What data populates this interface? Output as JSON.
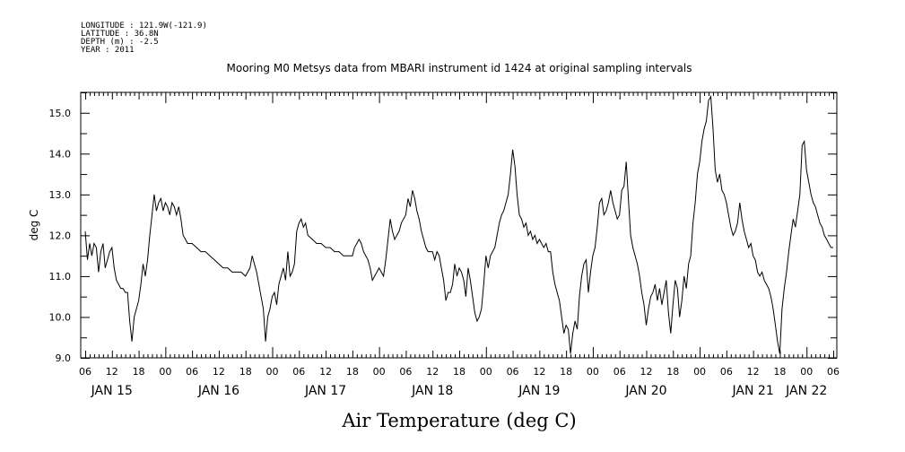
{
  "metadata": {
    "longitude": "LONGITUDE : 121.9W(-121.9)",
    "latitude": "LATITUDE : 36.8N",
    "depth": "DEPTH (m) : -2.5",
    "year": "YEAR : 2011"
  },
  "chart_data": {
    "type": "line",
    "title": "Mooring M0 Metsys data from MBARI instrument id 1424 at original sampling intervals",
    "xlabel": "Air Temperature (deg C)",
    "ylabel": "deg C",
    "ylim": [
      9.0,
      15.5
    ],
    "yticks": [
      "9.0",
      "10.0",
      "11.0",
      "12.0",
      "13.0",
      "14.0",
      "15.0"
    ],
    "xlim_hours": [
      0,
      168
    ],
    "x_hour_ticks": [
      "06",
      "12",
      "18",
      "00",
      "06",
      "12",
      "18",
      "00",
      "06",
      "12",
      "18",
      "00",
      "06",
      "12",
      "18",
      "00",
      "06",
      "12",
      "18",
      "00",
      "06",
      "12",
      "18",
      "00",
      "06",
      "12",
      "18",
      "00",
      "06"
    ],
    "x_date_labels": [
      "JAN 15",
      "JAN 16",
      "JAN 17",
      "JAN 18",
      "JAN 19",
      "JAN 20",
      "JAN 21",
      "JAN 22"
    ],
    "grid": false,
    "series": [
      {
        "color": "#000000",
        "points": [
          [
            0,
            12.1
          ],
          [
            0.5,
            11.4
          ],
          [
            1,
            11.8
          ],
          [
            1.5,
            11.5
          ],
          [
            2,
            11.8
          ],
          [
            2.5,
            11.7
          ],
          [
            3,
            11.1
          ],
          [
            3.5,
            11.6
          ],
          [
            4,
            11.8
          ],
          [
            4.5,
            11.2
          ],
          [
            5,
            11.4
          ],
          [
            5.5,
            11.6
          ],
          [
            6,
            11.7
          ],
          [
            6.5,
            11.2
          ],
          [
            7,
            10.9
          ],
          [
            7.5,
            10.8
          ],
          [
            8,
            10.7
          ],
          [
            8.5,
            10.7
          ],
          [
            9,
            10.6
          ],
          [
            9.5,
            10.6
          ],
          [
            10,
            9.9
          ],
          [
            10.5,
            9.4
          ],
          [
            11,
            10.0
          ],
          [
            11.5,
            10.2
          ],
          [
            12,
            10.4
          ],
          [
            12.5,
            10.8
          ],
          [
            13,
            11.3
          ],
          [
            13.5,
            11.0
          ],
          [
            14,
            11.4
          ],
          [
            14.5,
            12.0
          ],
          [
            15,
            12.5
          ],
          [
            15.5,
            13.0
          ],
          [
            16,
            12.6
          ],
          [
            16.5,
            12.8
          ],
          [
            17,
            12.9
          ],
          [
            17.5,
            12.6
          ],
          [
            18,
            12.8
          ],
          [
            18.5,
            12.7
          ],
          [
            19,
            12.5
          ],
          [
            19.5,
            12.8
          ],
          [
            20,
            12.7
          ],
          [
            20.5,
            12.5
          ],
          [
            21,
            12.7
          ],
          [
            21.5,
            12.4
          ],
          [
            22,
            12.0
          ],
          [
            22.5,
            11.9
          ],
          [
            23,
            11.8
          ],
          [
            24,
            11.8
          ],
          [
            25,
            11.7
          ],
          [
            26,
            11.6
          ],
          [
            27,
            11.6
          ],
          [
            28,
            11.5
          ],
          [
            29,
            11.4
          ],
          [
            30,
            11.3
          ],
          [
            31,
            11.2
          ],
          [
            32,
            11.2
          ],
          [
            33,
            11.1
          ],
          [
            34,
            11.1
          ],
          [
            35,
            11.1
          ],
          [
            36,
            11.0
          ],
          [
            37,
            11.2
          ],
          [
            37.5,
            11.5
          ],
          [
            38,
            11.3
          ],
          [
            38.5,
            11.1
          ],
          [
            39,
            10.8
          ],
          [
            39.5,
            10.5
          ],
          [
            40,
            10.2
          ],
          [
            40.5,
            9.4
          ],
          [
            41,
            10.0
          ],
          [
            41.5,
            10.2
          ],
          [
            42,
            10.5
          ],
          [
            42.5,
            10.6
          ],
          [
            43,
            10.3
          ],
          [
            43.5,
            10.8
          ],
          [
            44,
            11.0
          ],
          [
            44.5,
            11.2
          ],
          [
            45,
            10.9
          ],
          [
            45.5,
            11.6
          ],
          [
            46,
            11.0
          ],
          [
            46.5,
            11.1
          ],
          [
            47,
            11.3
          ],
          [
            47.5,
            12.1
          ],
          [
            48,
            12.3
          ],
          [
            48.5,
            12.4
          ],
          [
            49,
            12.2
          ],
          [
            49.5,
            12.3
          ],
          [
            50,
            12.0
          ],
          [
            51,
            11.9
          ],
          [
            52,
            11.8
          ],
          [
            53,
            11.8
          ],
          [
            54,
            11.7
          ],
          [
            55,
            11.7
          ],
          [
            56,
            11.6
          ],
          [
            57,
            11.6
          ],
          [
            58,
            11.5
          ],
          [
            59,
            11.5
          ],
          [
            60,
            11.5
          ],
          [
            60.5,
            11.7
          ],
          [
            61,
            11.8
          ],
          [
            61.5,
            11.9
          ],
          [
            62,
            11.8
          ],
          [
            62.5,
            11.6
          ],
          [
            63,
            11.5
          ],
          [
            63.5,
            11.4
          ],
          [
            64,
            11.2
          ],
          [
            64.5,
            10.9
          ],
          [
            65,
            11.0
          ],
          [
            65.5,
            11.1
          ],
          [
            66,
            11.2
          ],
          [
            66.5,
            11.1
          ],
          [
            67,
            11.0
          ],
          [
            67.5,
            11.4
          ],
          [
            68,
            11.9
          ],
          [
            68.5,
            12.4
          ],
          [
            69,
            12.1
          ],
          [
            69.5,
            11.9
          ],
          [
            70,
            12.0
          ],
          [
            70.5,
            12.1
          ],
          [
            71,
            12.3
          ],
          [
            71.5,
            12.4
          ],
          [
            72,
            12.5
          ],
          [
            72.5,
            12.9
          ],
          [
            73,
            12.7
          ],
          [
            73.5,
            13.1
          ],
          [
            74,
            12.9
          ],
          [
            74.5,
            12.6
          ],
          [
            75,
            12.4
          ],
          [
            75.5,
            12.1
          ],
          [
            76,
            11.9
          ],
          [
            76.5,
            11.7
          ],
          [
            77,
            11.6
          ],
          [
            77.5,
            11.6
          ],
          [
            78,
            11.6
          ],
          [
            78.5,
            11.4
          ],
          [
            79,
            11.6
          ],
          [
            79.5,
            11.5
          ],
          [
            80,
            11.2
          ],
          [
            80.5,
            10.9
          ],
          [
            81,
            10.4
          ],
          [
            81.5,
            10.6
          ],
          [
            82,
            10.6
          ],
          [
            82.5,
            10.8
          ],
          [
            83,
            11.3
          ],
          [
            83.5,
            11.0
          ],
          [
            84,
            11.2
          ],
          [
            84.5,
            11.1
          ],
          [
            85,
            10.9
          ],
          [
            85.5,
            10.5
          ],
          [
            86,
            11.2
          ],
          [
            86.5,
            10.9
          ],
          [
            87,
            10.5
          ],
          [
            87.5,
            10.1
          ],
          [
            88,
            9.9
          ],
          [
            88.5,
            10.0
          ],
          [
            89,
            10.2
          ],
          [
            89.5,
            10.8
          ],
          [
            90,
            11.5
          ],
          [
            90.5,
            11.2
          ],
          [
            91,
            11.5
          ],
          [
            91.5,
            11.6
          ],
          [
            92,
            11.7
          ],
          [
            92.5,
            12.0
          ],
          [
            93,
            12.3
          ],
          [
            93.5,
            12.5
          ],
          [
            94,
            12.6
          ],
          [
            94.5,
            12.8
          ],
          [
            95,
            13.0
          ],
          [
            95.5,
            13.5
          ],
          [
            96,
            14.1
          ],
          [
            96.5,
            13.7
          ],
          [
            97,
            13.0
          ],
          [
            97.5,
            12.5
          ],
          [
            98,
            12.4
          ],
          [
            98.5,
            12.2
          ],
          [
            99,
            12.3
          ],
          [
            99.5,
            12.0
          ],
          [
            100,
            12.1
          ],
          [
            100.5,
            11.9
          ],
          [
            101,
            12.0
          ],
          [
            101.5,
            11.8
          ],
          [
            102,
            11.9
          ],
          [
            102.5,
            11.8
          ],
          [
            103,
            11.7
          ],
          [
            103.5,
            11.8
          ],
          [
            104,
            11.6
          ],
          [
            104.5,
            11.6
          ],
          [
            105,
            11.1
          ],
          [
            105.5,
            10.8
          ],
          [
            106,
            10.6
          ],
          [
            106.5,
            10.4
          ],
          [
            107,
            10.0
          ],
          [
            107.5,
            9.6
          ],
          [
            108,
            9.8
          ],
          [
            108.5,
            9.7
          ],
          [
            109,
            9.1
          ],
          [
            109.5,
            9.6
          ],
          [
            110,
            9.9
          ],
          [
            110.5,
            9.7
          ],
          [
            111,
            10.5
          ],
          [
            111.5,
            11.0
          ],
          [
            112,
            11.3
          ],
          [
            112.5,
            11.4
          ],
          [
            113,
            10.6
          ],
          [
            113.5,
            11.1
          ],
          [
            114,
            11.5
          ],
          [
            114.5,
            11.7
          ],
          [
            115,
            12.2
          ],
          [
            115.5,
            12.8
          ],
          [
            116,
            12.9
          ],
          [
            116.5,
            12.5
          ],
          [
            117,
            12.6
          ],
          [
            117.5,
            12.8
          ],
          [
            118,
            13.1
          ],
          [
            118.5,
            12.8
          ],
          [
            119,
            12.6
          ],
          [
            119.5,
            12.4
          ],
          [
            120,
            12.5
          ],
          [
            120.5,
            13.1
          ],
          [
            121,
            13.2
          ],
          [
            121.5,
            13.8
          ],
          [
            122,
            12.9
          ],
          [
            122.5,
            12.0
          ],
          [
            123,
            11.7
          ],
          [
            123.5,
            11.5
          ],
          [
            124,
            11.3
          ],
          [
            124.5,
            11.0
          ],
          [
            125,
            10.6
          ],
          [
            125.5,
            10.3
          ],
          [
            126,
            9.8
          ],
          [
            126.5,
            10.2
          ],
          [
            127,
            10.5
          ],
          [
            127.5,
            10.6
          ],
          [
            128,
            10.8
          ],
          [
            128.5,
            10.4
          ],
          [
            129,
            10.7
          ],
          [
            129.5,
            10.3
          ],
          [
            130,
            10.6
          ],
          [
            130.5,
            10.9
          ],
          [
            131,
            10.1
          ],
          [
            131.5,
            9.6
          ],
          [
            132,
            10.3
          ],
          [
            132.5,
            10.9
          ],
          [
            133,
            10.7
          ],
          [
            133.5,
            10.0
          ],
          [
            134,
            10.4
          ],
          [
            134.5,
            11.0
          ],
          [
            135,
            10.7
          ],
          [
            135.5,
            11.3
          ],
          [
            136,
            11.5
          ],
          [
            136.5,
            12.3
          ],
          [
            137,
            12.8
          ],
          [
            137.5,
            13.5
          ],
          [
            138,
            13.8
          ],
          [
            138.5,
            14.3
          ],
          [
            139,
            14.6
          ],
          [
            139.5,
            14.8
          ],
          [
            140,
            15.3
          ],
          [
            140.5,
            15.4
          ],
          [
            141,
            14.6
          ],
          [
            141.5,
            13.6
          ],
          [
            142,
            13.3
          ],
          [
            142.5,
            13.5
          ],
          [
            143,
            13.1
          ],
          [
            143.5,
            13.0
          ],
          [
            144,
            12.8
          ],
          [
            144.5,
            12.5
          ],
          [
            145,
            12.2
          ],
          [
            145.5,
            12.0
          ],
          [
            146,
            12.1
          ],
          [
            146.5,
            12.3
          ],
          [
            147,
            12.8
          ],
          [
            147.5,
            12.4
          ],
          [
            148,
            12.1
          ],
          [
            148.5,
            11.9
          ],
          [
            149,
            11.7
          ],
          [
            149.5,
            11.8
          ],
          [
            150,
            11.5
          ],
          [
            150.5,
            11.4
          ],
          [
            151,
            11.1
          ],
          [
            151.5,
            11.0
          ],
          [
            152,
            11.1
          ],
          [
            152.5,
            10.9
          ],
          [
            153,
            10.8
          ],
          [
            153.5,
            10.7
          ],
          [
            154,
            10.5
          ],
          [
            154.5,
            10.2
          ],
          [
            155,
            9.8
          ],
          [
            155.5,
            9.4
          ],
          [
            156,
            9.1
          ],
          [
            156.5,
            10.2
          ],
          [
            157,
            10.7
          ],
          [
            157.5,
            11.1
          ],
          [
            158,
            11.6
          ],
          [
            158.5,
            12.0
          ],
          [
            159,
            12.4
          ],
          [
            159.5,
            12.2
          ],
          [
            160,
            12.6
          ],
          [
            160.5,
            13.0
          ],
          [
            161,
            14.2
          ],
          [
            161.5,
            14.3
          ],
          [
            162,
            13.6
          ],
          [
            162.5,
            13.3
          ],
          [
            163,
            13.0
          ],
          [
            163.5,
            12.8
          ],
          [
            164,
            12.7
          ],
          [
            164.5,
            12.5
          ],
          [
            165,
            12.3
          ],
          [
            165.5,
            12.2
          ],
          [
            166,
            12.0
          ],
          [
            166.5,
            11.9
          ],
          [
            167,
            11.8
          ],
          [
            167.5,
            11.7
          ],
          [
            168,
            11.7
          ]
        ]
      }
    ]
  }
}
